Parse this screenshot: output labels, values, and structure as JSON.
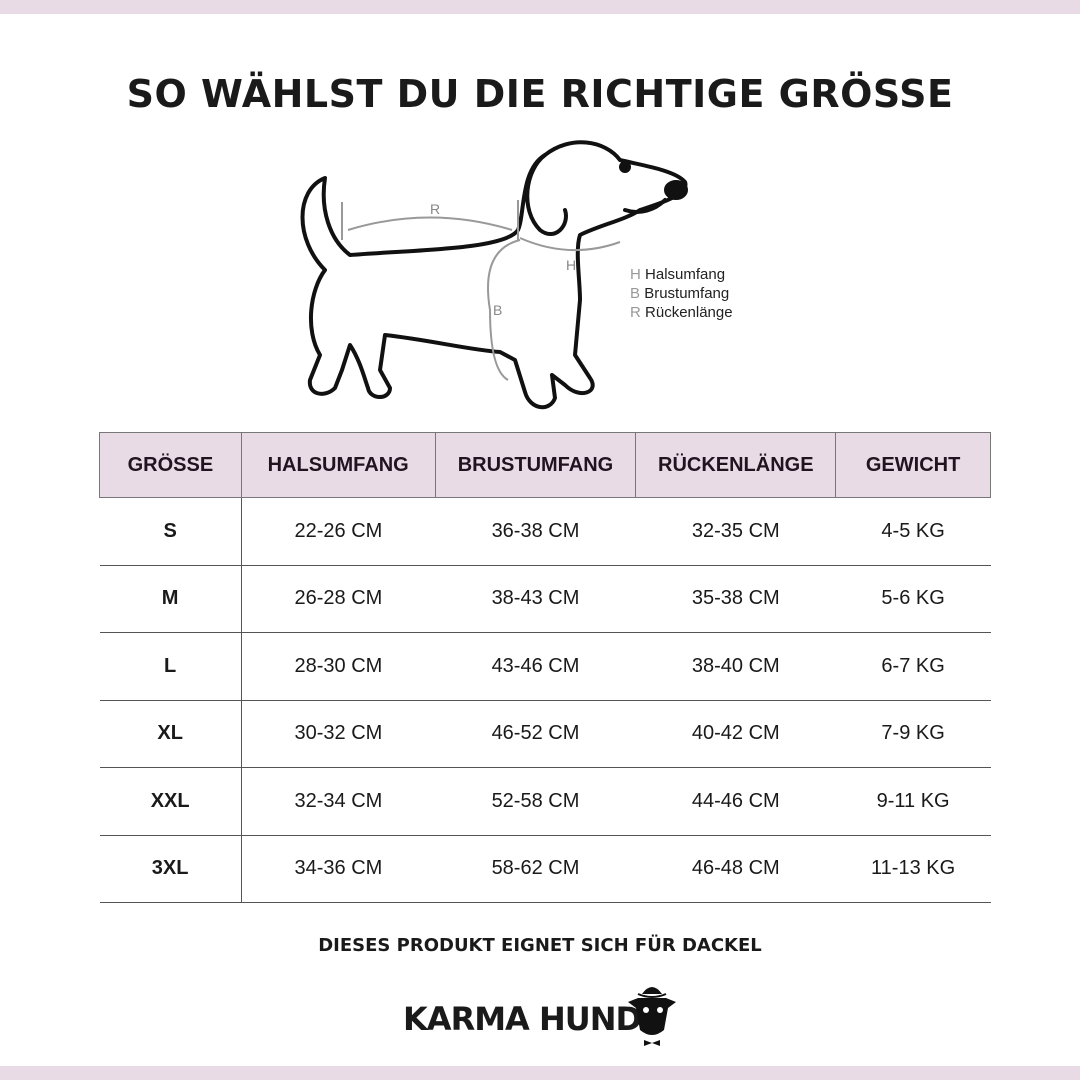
{
  "title": "SO WÄHLST DU DIE RICHTIGE GRÖSSE",
  "diagram": {
    "labels": {
      "r": "R",
      "h": "H",
      "b": "B"
    },
    "legend": [
      {
        "key": "H",
        "label": "Halsumfang"
      },
      {
        "key": "B",
        "label": "Brustumfang"
      },
      {
        "key": "R",
        "label": "Rückenlänge"
      }
    ]
  },
  "table": {
    "headers": [
      "GRÖSSE",
      "HALSUMFANG",
      "BRUSTUMFANG",
      "RÜCKENLÄNGE",
      "GEWICHT"
    ],
    "rows": [
      [
        "S",
        "22-26 CM",
        "36-38 CM",
        "32-35 CM",
        "4-5 KG"
      ],
      [
        "M",
        "26-28 CM",
        "38-43 CM",
        "35-38 CM",
        "5-6 KG"
      ],
      [
        "L",
        "28-30 CM",
        "43-46 CM",
        "38-40 CM",
        "6-7 KG"
      ],
      [
        "XL",
        "30-32 CM",
        "46-52 CM",
        "40-42 CM",
        "7-9 KG"
      ],
      [
        "XXL",
        "32-34 CM",
        "52-58 CM",
        "44-46 CM",
        "9-11 KG"
      ],
      [
        "3XL",
        "34-36 CM",
        "58-62 CM",
        "46-48 CM",
        "11-13 KG"
      ]
    ]
  },
  "note": "DIESES PRODUKT EIGNET SICH FÜR DACKEL",
  "brand": "KARMA HUND",
  "colors": {
    "accent": "#e8dbe6"
  }
}
